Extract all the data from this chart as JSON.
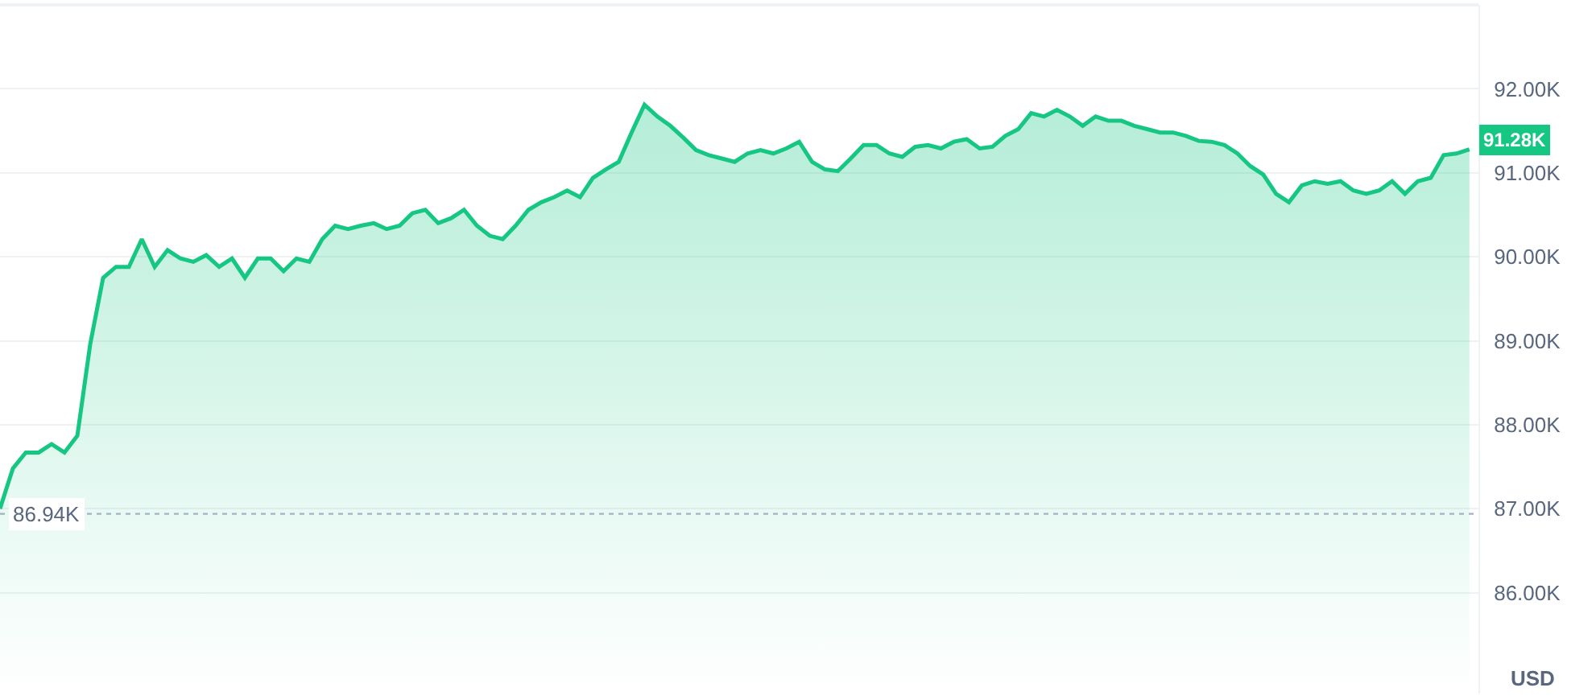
{
  "chart_data": {
    "type": "area",
    "ylabel": "USD",
    "categories": [
      null,
      null,
      null,
      null,
      null,
      null,
      null,
      null,
      null,
      null,
      null,
      null,
      null,
      null,
      null,
      null,
      null,
      null,
      null,
      null,
      null,
      null,
      null,
      null,
      null,
      null,
      null,
      null,
      null,
      null,
      null,
      null,
      null,
      null,
      null,
      null,
      null,
      null,
      null,
      null,
      null,
      null,
      null,
      null,
      null,
      null,
      null,
      null,
      null,
      null,
      null,
      null,
      null,
      null,
      null,
      null,
      null,
      null,
      null,
      null,
      null,
      null,
      null,
      null,
      null,
      null,
      null,
      null,
      null,
      null,
      null,
      null,
      null,
      null,
      null,
      null,
      null,
      null,
      null,
      null,
      null,
      null,
      null,
      null,
      null,
      null,
      null,
      null,
      null,
      null,
      null,
      null,
      null,
      null,
      null,
      null,
      null,
      null,
      null,
      null,
      null,
      null,
      null,
      null,
      null,
      null,
      null,
      null,
      null,
      null,
      null,
      null,
      null,
      null,
      null
    ],
    "series": [
      {
        "color": "#16c784",
        "values": [
          87000,
          87480,
          87670,
          87670,
          87770,
          87670,
          87870,
          88960,
          89750,
          89880,
          89880,
          90210,
          89880,
          90080,
          89980,
          89940,
          90020,
          89880,
          89980,
          89750,
          89980,
          89980,
          89830,
          89980,
          89940,
          90210,
          90370,
          90330,
          90370,
          90400,
          90330,
          90370,
          90520,
          90560,
          90400,
          90460,
          90560,
          90370,
          90250,
          90210,
          90370,
          90560,
          90650,
          90710,
          90790,
          90710,
          90940,
          91040,
          91130,
          91480,
          91810,
          91670,
          91560,
          91420,
          91270,
          91210,
          91170,
          91130,
          91230,
          91270,
          91230,
          91290,
          91370,
          91130,
          91040,
          91020,
          91170,
          91330,
          91330,
          91230,
          91190,
          91310,
          91330,
          91290,
          91370,
          91400,
          91290,
          91310,
          91440,
          91520,
          91710,
          91670,
          91750,
          91670,
          91560,
          91670,
          91620,
          91620,
          91560,
          91520,
          91480,
          91480,
          91440,
          91380,
          91370,
          91330,
          91230,
          91080,
          90980,
          90750,
          90650,
          90850,
          90900,
          90870,
          90900,
          90790,
          90750,
          90790,
          90900,
          90750,
          90900,
          90940,
          91210,
          91230,
          91280
        ]
      }
    ],
    "ylim": [
      84800,
      93000
    ],
    "yticks": [
      {
        "value": 86000,
        "label": "86.00K"
      },
      {
        "value": 87000,
        "label": "87.00K"
      },
      {
        "value": 88000,
        "label": "88.00K"
      },
      {
        "value": 89000,
        "label": "89.00K"
      },
      {
        "value": 90000,
        "label": "90.00K"
      },
      {
        "value": 91000,
        "label": "91.00K"
      },
      {
        "value": 92000,
        "label": "92.00K"
      }
    ],
    "tick_labels": "y",
    "grid": "y",
    "marker": "none",
    "line_style": "solid",
    "ref_lines": [
      {
        "axis": "y",
        "value": 86940,
        "label": "86.94K",
        "color": "#a6b0c3",
        "line_style": "dotted"
      }
    ],
    "annotations": [
      "91.28K"
    ]
  }
}
